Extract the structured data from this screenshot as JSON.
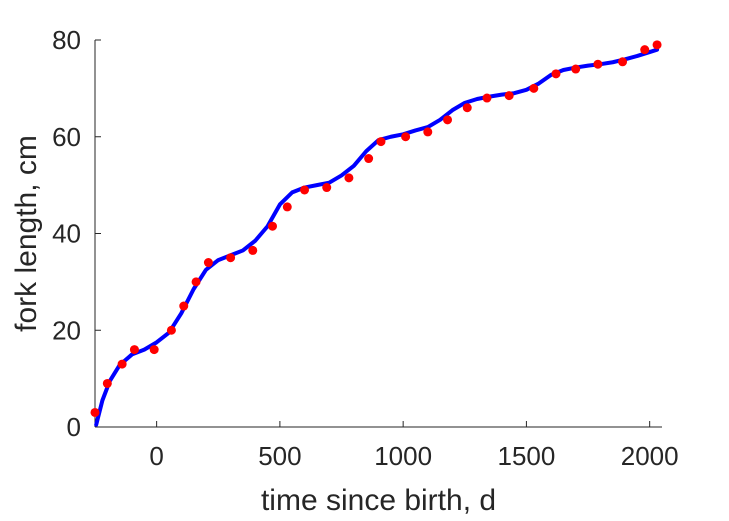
{
  "chart_data": {
    "type": "scatter",
    "xlabel": "time since birth, d",
    "ylabel": "fork length, cm",
    "xlim": [
      -250,
      2050
    ],
    "ylim": [
      0,
      80
    ],
    "xticks": [
      0,
      500,
      1000,
      1500,
      2000
    ],
    "xtick_labels": [
      "0",
      "500",
      "1000",
      "1500",
      "2000"
    ],
    "yticks": [
      0,
      20,
      40,
      60,
      80
    ],
    "ytick_labels": [
      "0",
      "20",
      "40",
      "60",
      "80"
    ],
    "grid": false,
    "box": "left-bottom only",
    "series": [
      {
        "type": "scatter",
        "color": "#ff0000",
        "x": [
          -250,
          -200,
          -140,
          -90,
          -10,
          60,
          110,
          160,
          210,
          300,
          390,
          470,
          530,
          600,
          690,
          780,
          860,
          910,
          1010,
          1100,
          1180,
          1260,
          1340,
          1430,
          1530,
          1620,
          1700,
          1790,
          1890,
          1980,
          2030
        ],
        "y": [
          3.0,
          9.0,
          13.0,
          16.0,
          16.0,
          20.0,
          25.0,
          30.0,
          34.0,
          35.0,
          36.5,
          41.5,
          45.5,
          49.0,
          49.5,
          51.5,
          55.5,
          59.0,
          60.0,
          61.0,
          63.5,
          66.0,
          68.0,
          68.5,
          70.0,
          73.0,
          74.0,
          75.0,
          75.5,
          78.0,
          79.0
        ]
      },
      {
        "type": "line",
        "color": "#0000ff",
        "x": [
          -245,
          -220,
          -190,
          -150,
          -100,
          -50,
          0,
          50,
          100,
          150,
          200,
          250,
          300,
          350,
          400,
          450,
          500,
          550,
          600,
          650,
          700,
          750,
          800,
          850,
          900,
          950,
          1000,
          1050,
          1100,
          1150,
          1200,
          1250,
          1300,
          1350,
          1400,
          1450,
          1500,
          1550,
          1600,
          1650,
          1700,
          1750,
          1800,
          1850,
          1900,
          1950,
          2000,
          2030
        ],
        "y": [
          0.5,
          5.5,
          9.5,
          12.8,
          15.0,
          16.0,
          17.5,
          19.5,
          23.5,
          28.5,
          32.5,
          34.5,
          35.5,
          36.5,
          38.5,
          41.5,
          46.0,
          48.5,
          49.5,
          50.0,
          50.5,
          52.0,
          54.0,
          57.0,
          59.3,
          60.0,
          60.5,
          61.3,
          62.0,
          63.5,
          65.5,
          67.0,
          67.8,
          68.3,
          68.7,
          69.0,
          69.7,
          71.0,
          72.8,
          73.8,
          74.3,
          74.7,
          75.0,
          75.4,
          76.0,
          76.7,
          77.5,
          78.0
        ]
      }
    ]
  }
}
